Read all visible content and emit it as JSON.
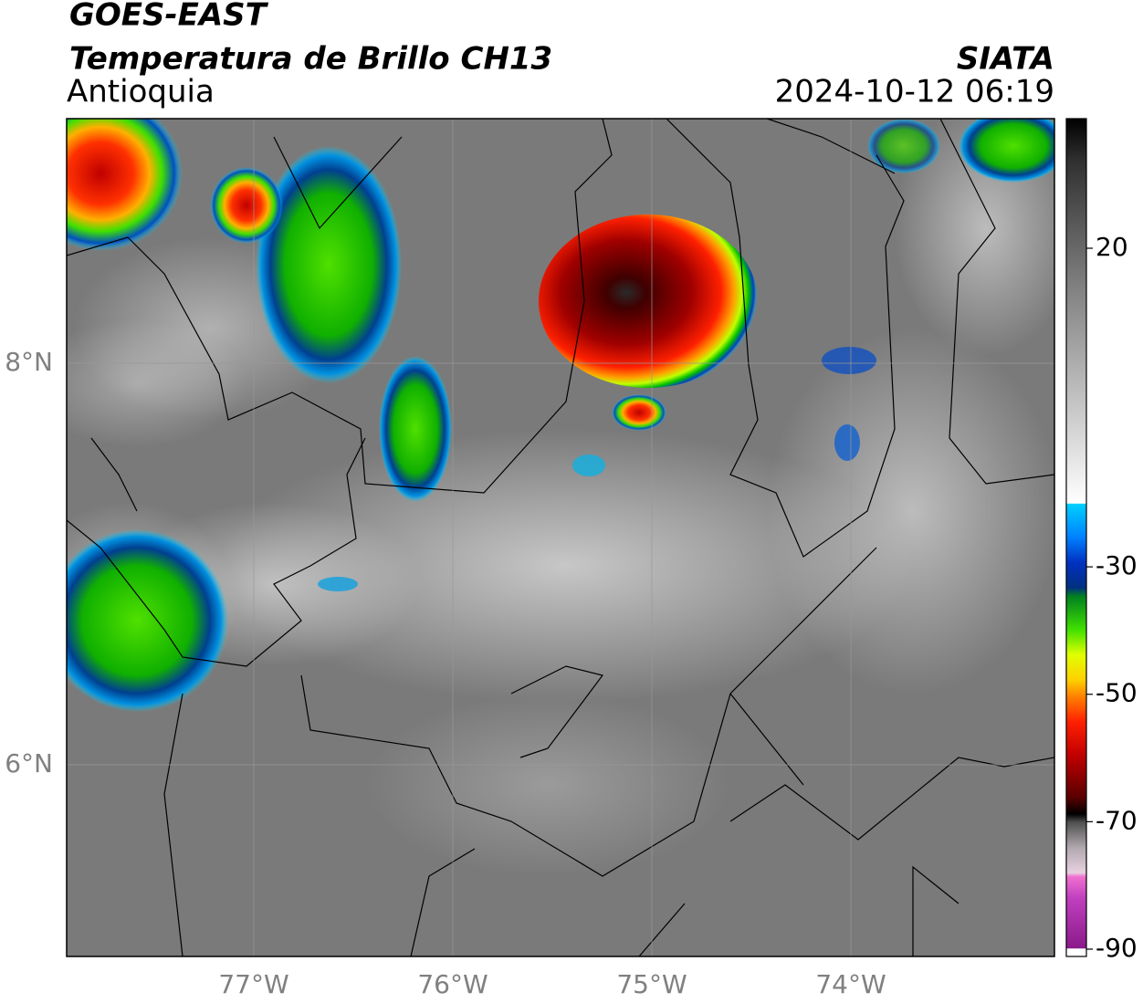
{
  "header": {
    "title": "GOES-EAST",
    "subtitle": "Temperatura de Brillo CH13",
    "region": "Antioquia",
    "source": "SIATA",
    "datetime": "2024-10-12 06:19"
  },
  "map": {
    "lat_ticks": [
      {
        "value": 8,
        "label": "8°N"
      },
      {
        "value": 6,
        "label": "6°N"
      }
    ],
    "lon_ticks": [
      {
        "value": -77,
        "label": "77°W"
      },
      {
        "value": -76,
        "label": "76°W"
      },
      {
        "value": -75,
        "label": "75°W"
      },
      {
        "value": -74,
        "label": "74°W"
      }
    ]
  },
  "colorbar": {
    "ticks": [
      20,
      -30,
      -50,
      -70,
      -90
    ]
  }
}
